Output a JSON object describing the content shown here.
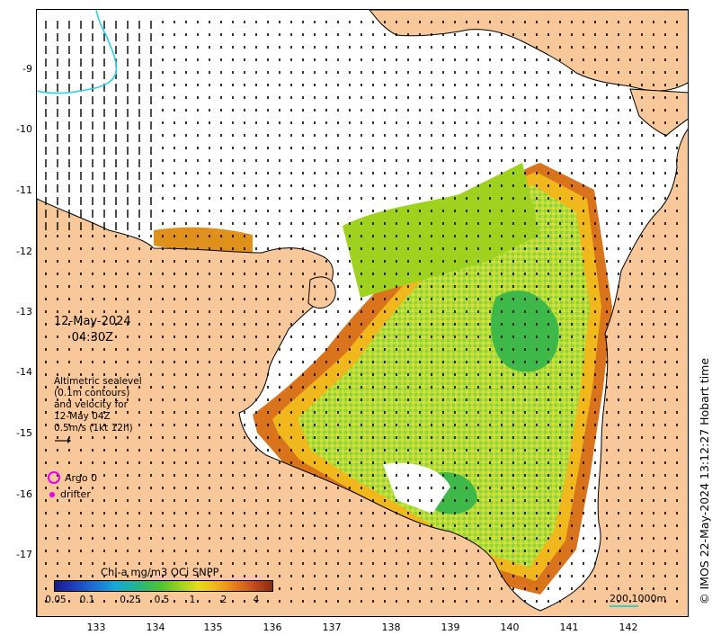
{
  "map": {
    "date": "12-May-2024",
    "time": "04:30Z",
    "sealevel_note": [
      "Altimetric sealevel",
      "(0.1m contours)",
      "and velocity for",
      "12-May 04Z",
      "0.5m/s (1kt 12h)"
    ],
    "legend": {
      "argo": "Argo 0",
      "drifter": "drifter"
    },
    "colorbar": {
      "title": "Chl-a mg/m3 OCi SNPP",
      "ticks": [
        "0.05",
        "0.1",
        "0.25",
        "0.5",
        "1",
        "2",
        "4"
      ]
    },
    "scale_label": "200  1000m",
    "credit": "© IMOS 22-May-2024 13:12:27 Hobart time",
    "lat_ticks": [
      "-9",
      "-10",
      "-11",
      "-12",
      "-13",
      "-14",
      "-15",
      "-16",
      "-17"
    ],
    "lon_ticks": [
      "133",
      "134",
      "135",
      "136",
      "137",
      "138",
      "139",
      "140",
      "141",
      "142"
    ],
    "colors": {
      "land": "#f8c79a",
      "argo": "#e800e8",
      "bathymetry_200m": "#2dd2c8"
    }
  }
}
